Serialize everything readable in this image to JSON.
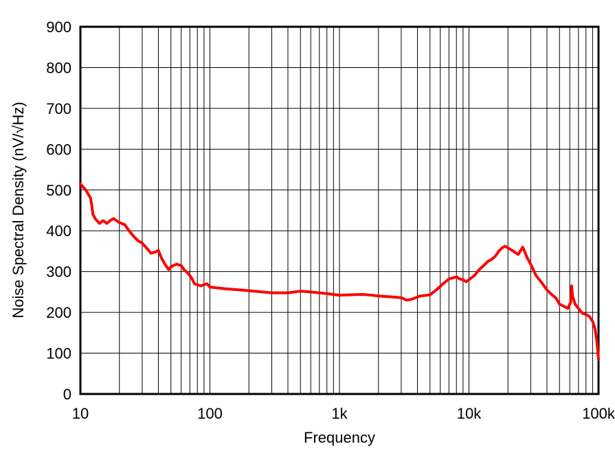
{
  "chart_data": {
    "type": "line",
    "xlabel": "Frequency",
    "ylabel": "Noise Spectral Density (nV/√Hz)",
    "x_scale": "log",
    "xlim": [
      10,
      100000
    ],
    "ylim": [
      0,
      900
    ],
    "grid": true,
    "x_ticks": [
      {
        "value": 10,
        "label": "10"
      },
      {
        "value": 100,
        "label": "100"
      },
      {
        "value": 1000,
        "label": "1k"
      },
      {
        "value": 10000,
        "label": "10k"
      },
      {
        "value": 100000,
        "label": "100k"
      }
    ],
    "y_ticks": [
      {
        "value": 0,
        "label": "0"
      },
      {
        "value": 100,
        "label": "100"
      },
      {
        "value": 200,
        "label": "200"
      },
      {
        "value": 300,
        "label": "300"
      },
      {
        "value": 400,
        "label": "400"
      },
      {
        "value": 500,
        "label": "500"
      },
      {
        "value": 600,
        "label": "600"
      },
      {
        "value": 700,
        "label": "700"
      },
      {
        "value": 800,
        "label": "800"
      },
      {
        "value": 900,
        "label": "900"
      }
    ],
    "series": [
      {
        "color": "#ff0000",
        "points": [
          [
            10,
            515
          ],
          [
            11,
            500
          ],
          [
            12,
            480
          ],
          [
            12.5,
            440
          ],
          [
            13,
            430
          ],
          [
            14,
            418
          ],
          [
            15,
            425
          ],
          [
            16,
            418
          ],
          [
            17,
            425
          ],
          [
            18,
            430
          ],
          [
            20,
            420
          ],
          [
            22,
            415
          ],
          [
            24,
            398
          ],
          [
            26,
            385
          ],
          [
            28,
            375
          ],
          [
            30,
            370
          ],
          [
            33,
            355
          ],
          [
            35,
            345
          ],
          [
            38,
            348
          ],
          [
            40,
            352
          ],
          [
            42,
            335
          ],
          [
            45,
            318
          ],
          [
            48,
            305
          ],
          [
            50,
            312
          ],
          [
            55,
            318
          ],
          [
            60,
            315
          ],
          [
            63,
            305
          ],
          [
            68,
            295
          ],
          [
            72,
            285
          ],
          [
            76,
            270
          ],
          [
            80,
            268
          ],
          [
            85,
            265
          ],
          [
            90,
            268
          ],
          [
            95,
            270
          ],
          [
            100,
            262
          ],
          [
            130,
            258
          ],
          [
            170,
            255
          ],
          [
            220,
            252
          ],
          [
            300,
            248
          ],
          [
            400,
            248
          ],
          [
            500,
            252
          ],
          [
            600,
            250
          ],
          [
            700,
            248
          ],
          [
            850,
            245
          ],
          [
            1000,
            242
          ],
          [
            1200,
            243
          ],
          [
            1500,
            244
          ],
          [
            1800,
            242
          ],
          [
            2000,
            240
          ],
          [
            2500,
            238
          ],
          [
            3000,
            236
          ],
          [
            3300,
            230
          ],
          [
            3600,
            232
          ],
          [
            4200,
            240
          ],
          [
            5000,
            243
          ],
          [
            5600,
            255
          ],
          [
            6300,
            270
          ],
          [
            7000,
            282
          ],
          [
            8000,
            287
          ],
          [
            8500,
            282
          ],
          [
            9000,
            280
          ],
          [
            9500,
            275
          ],
          [
            10000,
            280
          ],
          [
            11000,
            290
          ],
          [
            12000,
            305
          ],
          [
            13000,
            315
          ],
          [
            14000,
            325
          ],
          [
            15000,
            330
          ],
          [
            16000,
            338
          ],
          [
            17000,
            350
          ],
          [
            18000,
            358
          ],
          [
            19000,
            362
          ],
          [
            20000,
            358
          ],
          [
            22000,
            350
          ],
          [
            24000,
            342
          ],
          [
            26000,
            360
          ],
          [
            27000,
            348
          ],
          [
            28000,
            335
          ],
          [
            30000,
            318
          ],
          [
            33000,
            290
          ],
          [
            37000,
            270
          ],
          [
            40000,
            255
          ],
          [
            43000,
            245
          ],
          [
            47000,
            235
          ],
          [
            50000,
            220
          ],
          [
            54000,
            215
          ],
          [
            58000,
            210
          ],
          [
            61000,
            225
          ],
          [
            62000,
            265
          ],
          [
            63000,
            240
          ],
          [
            66000,
            220
          ],
          [
            70000,
            210
          ],
          [
            75000,
            198
          ],
          [
            80000,
            195
          ],
          [
            85000,
            190
          ],
          [
            90000,
            178
          ],
          [
            94000,
            160
          ],
          [
            97000,
            130
          ],
          [
            100000,
            85
          ]
        ]
      }
    ]
  }
}
